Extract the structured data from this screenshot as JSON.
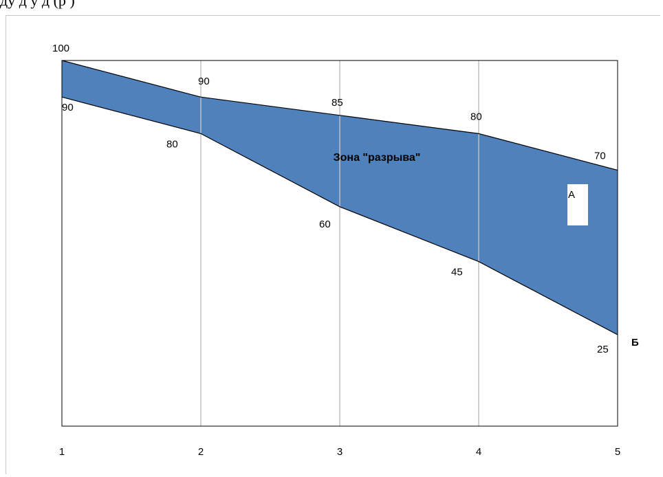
{
  "header": {
    "cropped_text": "ду  д                                          у      д  (р      )"
  },
  "colors": {
    "zone_fill": "#4F81BD",
    "line": "#000000",
    "gridline": "#C0C0C0",
    "frame": "#000000"
  },
  "chart_data": {
    "type": "area",
    "title": "",
    "xlabel": "",
    "ylabel": "",
    "categories": [
      "1",
      "2",
      "3",
      "4",
      "5"
    ],
    "x": [
      1,
      2,
      3,
      4,
      5
    ],
    "ylim": [
      0,
      100
    ],
    "series": [
      {
        "values": [
          100,
          90,
          85,
          80,
          70
        ]
      },
      {
        "values": [
          90,
          80,
          60,
          45,
          25
        ]
      }
    ],
    "upper_labels": [
      "100",
      "90",
      "85",
      "80",
      "70"
    ],
    "lower_labels": [
      "90",
      "80",
      "60",
      "45",
      "25"
    ],
    "annotations": {
      "zone": "Зона  \"разрыва\"",
      "point_a": "А",
      "point_b": "Б"
    },
    "grid": "vertical"
  }
}
